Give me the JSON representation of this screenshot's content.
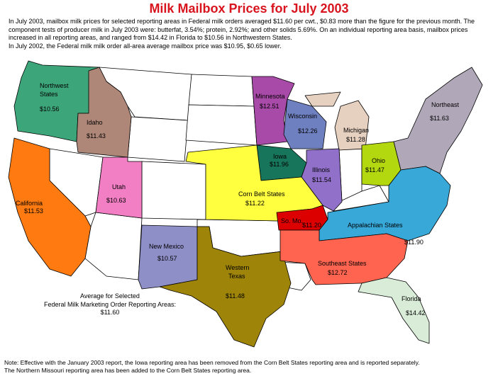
{
  "title": "Milk Mailbox Prices for July 2003",
  "intro": {
    "line1": "In July 2003, mailbox milk prices for selected reporting areas in Federal milk orders averaged $11.60 per cwt., $0.83 more than the figure for the previous month.  The component tests of producer milk in July 2003 were: butterfat, 3.54%; protein, 2.92%; and other solids 5.69%. On an individual reporting area basis, mailbox prices increased in all reporting areas, and ranged from $14.42 in Florida to $10.56 in Northwestern States.",
    "line2": "In July 2002, the Federal milk milk order all-area average mailbox price was $10.95, $0.65 lower."
  },
  "regions": [
    {
      "name": "Northwest States",
      "label1": "Northwest",
      "label2": "States",
      "price": "$10.56",
      "color": "#3da57a"
    },
    {
      "name": "Idaho",
      "label1": "Idaho",
      "label2": "",
      "price": "$11.43",
      "color": "#ae8778"
    },
    {
      "name": "California",
      "label1": "California",
      "label2": "",
      "price": "$11.53",
      "color": "#ff7a10"
    },
    {
      "name": "Utah",
      "label1": "Utah",
      "label2": "",
      "price": "$10.63",
      "color": "#f27fc4"
    },
    {
      "name": "New Mexico",
      "label1": "New Mexico",
      "label2": "",
      "price": "$10.57",
      "color": "#8f8fc8"
    },
    {
      "name": "Western Texas",
      "label1": "Western",
      "label2": "Texas",
      "price": "$11.48",
      "color": "#9e8408"
    },
    {
      "name": "Minnesota",
      "label1": "Minnesota",
      "label2": "",
      "price": "$12.51",
      "color": "#a84aa8"
    },
    {
      "name": "Wisconsin",
      "label1": "Wisconsin",
      "label2": "",
      "price": "$12.26",
      "color": "#6f80c0"
    },
    {
      "name": "Michigan",
      "label1": "Michigan",
      "label2": "",
      "price": "$11.28",
      "color": "#e6d0c0"
    },
    {
      "name": "Iowa",
      "label1": "Iowa",
      "label2": "",
      "price": "$11.96",
      "color": "#16755a"
    },
    {
      "name": "Illinois",
      "label1": "Illinois",
      "label2": "",
      "price": "$11.54",
      "color": "#9070c8"
    },
    {
      "name": "Ohio",
      "label1": "Ohio",
      "label2": "",
      "price": "$11.47",
      "color": "#b4d810"
    },
    {
      "name": "Northeast",
      "label1": "Northeast",
      "label2": "",
      "price": "$11.63",
      "color": "#b0a8b8"
    },
    {
      "name": "Corn Belt States",
      "label1": "Corn Belt States",
      "label2": "",
      "price": "$11.22",
      "color": "#ffff40"
    },
    {
      "name": "So. Mo.",
      "label1": "So. Mo.",
      "label2": "",
      "price": "$11.20",
      "color": "#dd0000"
    },
    {
      "name": "Appalachian States",
      "label1": "Appalachian States",
      "label2": "",
      "price": "$11.90",
      "color": "#38a8d8"
    },
    {
      "name": "Southeast States",
      "label1": "Southeast States",
      "label2": "",
      "price": "$12.72",
      "color": "#ff6450"
    },
    {
      "name": "Florida",
      "label1": "Florida",
      "label2": "",
      "price": "$14.42",
      "color": "#d8ecd8"
    }
  ],
  "average": {
    "line1": "Average for Selected",
    "line2": "Federal Milk Marketing Order Reporting Areas:",
    "value": "$11.60"
  },
  "notes": {
    "line1": "Note: Effective with the January 2003 report, the Iowa reporting area has been removed from the Corn Belt States reporting area and is reported separately.",
    "line2": "The Northern Missouri reporting area has been added to the Corn Belt States reporting area."
  }
}
